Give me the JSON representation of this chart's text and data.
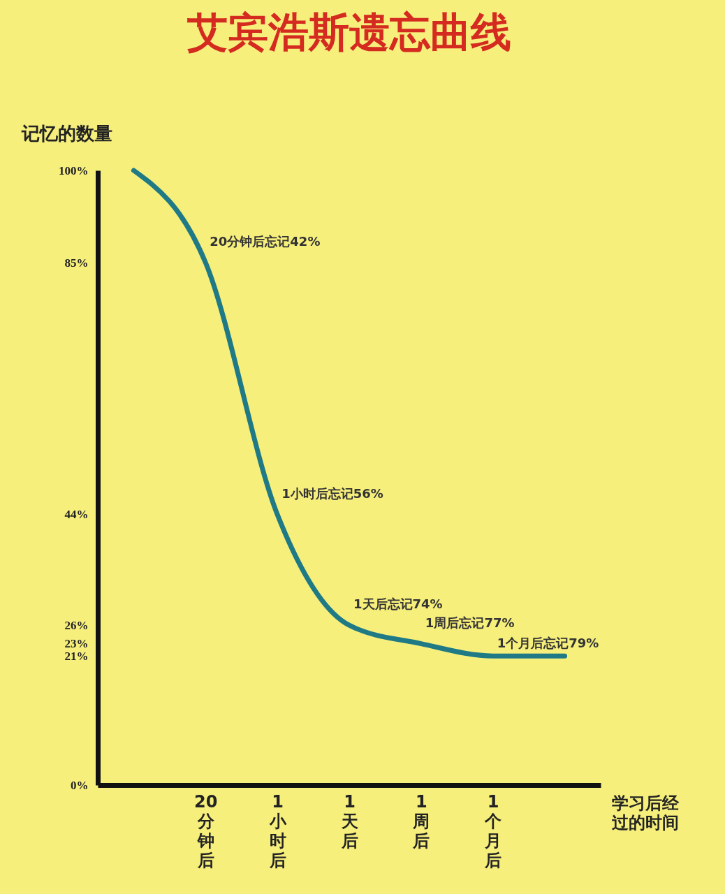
{
  "chart_data": {
    "type": "line",
    "title": "艾宾浩斯遗忘曲线",
    "ylabel": "记忆的数量",
    "xlabel": "学习后经过的时间",
    "categories": [
      null,
      "20分钟后",
      "1小时后",
      "1天后",
      "1周后",
      "1个月后",
      null
    ],
    "series": [
      {
        "color": "#1f7a86",
        "values": [
          100,
          85,
          44,
          26,
          23,
          21,
          21
        ]
      }
    ],
    "ylim": [
      0,
      100
    ],
    "yticks": [
      {
        "value": 0,
        "label": "0%"
      },
      {
        "value": 21,
        "label": "21%"
      },
      {
        "value": 23,
        "label": "23%"
      },
      {
        "value": 26,
        "label": "26%"
      },
      {
        "value": 44,
        "label": "44%"
      },
      {
        "value": 85,
        "label": "85%"
      },
      {
        "value": 100,
        "label": "100%"
      }
    ],
    "annotations": [
      {
        "text": "20分钟后忘记42%",
        "x": "20分钟后",
        "y": 85
      },
      {
        "text": "1小时后忘记56%",
        "x": "1小时后",
        "y": 44
      },
      {
        "text": "1天后忘记74%",
        "x": "1天后",
        "y": 26
      },
      {
        "text": "1周后忘记77%",
        "x": "1周后",
        "y": 23
      },
      {
        "text": "1个月后忘记79%",
        "x": "1个月后",
        "y": 21
      }
    ],
    "grid": false,
    "marker": "none",
    "line_style": "solid"
  }
}
